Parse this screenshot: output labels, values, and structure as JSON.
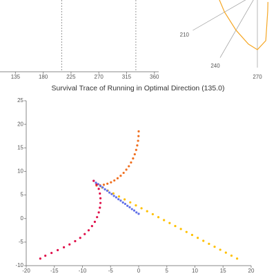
{
  "chart_data": [
    {
      "type": "vlines",
      "xlim": [
        110,
        367
      ],
      "xticks": [
        135,
        180,
        225,
        270,
        315,
        360
      ],
      "vlines": [
        210,
        330
      ]
    },
    {
      "type": "polar",
      "thetaticks": [
        210,
        240,
        270
      ],
      "rlim": [
        0,
        1
      ],
      "series": [
        {
          "color": "#f5a623",
          "theta": [
            190,
            210,
            240,
            260,
            270,
            280,
            300,
            320
          ],
          "r": [
            0.56,
            0.55,
            0.62,
            0.75,
            0.82,
            0.7,
            0.3,
            0.2
          ]
        }
      ]
    },
    {
      "type": "scatter",
      "title": "Survival Trace of Running in Optimal Direction (135.0)",
      "xlim": [
        -20,
        20
      ],
      "ylim": [
        -10,
        25
      ],
      "xticks": [
        -20,
        -15,
        -10,
        -5,
        0,
        5,
        10,
        15,
        20
      ],
      "yticks": [
        -10,
        -5,
        0,
        5,
        10,
        15,
        20,
        25
      ],
      "series": [
        {
          "color": "#ffc000",
          "x": [
            -7.5,
            -6.5,
            -5.5,
            -4.5,
            -3.5,
            -2.5,
            -1.5,
            -0.5,
            0.5,
            1.5,
            2.5,
            3.5,
            4.5,
            5.5,
            6.5,
            7.5,
            8.5,
            9.5,
            10.5,
            11.5,
            12.5,
            13.5,
            14.5,
            15.5,
            16.5,
            17.5
          ],
          "values": [
            7.2,
            6.57,
            5.94,
            5.32,
            4.69,
            4.06,
            3.43,
            2.8,
            2.18,
            1.55,
            0.92,
            0.29,
            -0.34,
            -0.96,
            -1.59,
            -2.22,
            -2.85,
            -3.48,
            -4.1,
            -4.73,
            -5.36,
            -5.99,
            -6.62,
            -7.24,
            -7.87,
            -8.5
          ]
        },
        {
          "color": "#f07020",
          "x": [
            -7.5,
            -6.85,
            -6.2,
            -5.56,
            -4.93,
            -4.33,
            -3.75,
            -3.2,
            -2.68,
            -2.2,
            -1.75,
            -1.36,
            -1.0,
            -0.7,
            -0.45,
            -0.26,
            -0.11,
            -0.03,
            0
          ],
          "values": [
            7,
            7.05,
            7.17,
            7.39,
            7.69,
            8.08,
            8.54,
            9.08,
            9.69,
            10.37,
            11.1,
            11.9,
            12.75,
            13.64,
            14.57,
            15.52,
            16.5,
            17.5,
            18.5
          ]
        },
        {
          "color": "#6070e8",
          "x": [
            -8,
            -7.6,
            -7.2,
            -6.8,
            -6.4,
            -6,
            -5.6,
            -5.2,
            -4.8,
            -4.4,
            -4,
            -3.6,
            -3.2,
            -2.8,
            -2.4,
            -2,
            -1.6,
            -1.2,
            -0.8,
            -0.4,
            0
          ],
          "values": [
            8,
            7.6,
            7.3,
            6.9,
            6.6,
            6.2,
            5.9,
            5.5,
            5.2,
            4.8,
            4.5,
            4.1,
            3.8,
            3.4,
            3.1,
            2.7,
            2.4,
            2,
            1.7,
            1.3,
            1
          ]
        },
        {
          "color": "#e0104a",
          "x": [
            -8,
            -7.5,
            -7.1,
            -6.9,
            -6.8,
            -6.8,
            -6.9,
            -7.1,
            -7.4,
            -7.8,
            -8.3,
            -8.9,
            -9.6,
            -10.4,
            -11.3,
            -12.3,
            -13.3,
            -14.4,
            -15.5,
            -16.6,
            -17.5
          ],
          "values": [
            8,
            7.2,
            6.3,
            5.3,
            4.3,
            3.3,
            2.3,
            1.3,
            0.3,
            -0.7,
            -1.6,
            -2.5,
            -3.3,
            -4.1,
            -4.8,
            -5.5,
            -6.1,
            -6.7,
            -7.3,
            -7.9,
            -8.5
          ]
        }
      ]
    }
  ]
}
